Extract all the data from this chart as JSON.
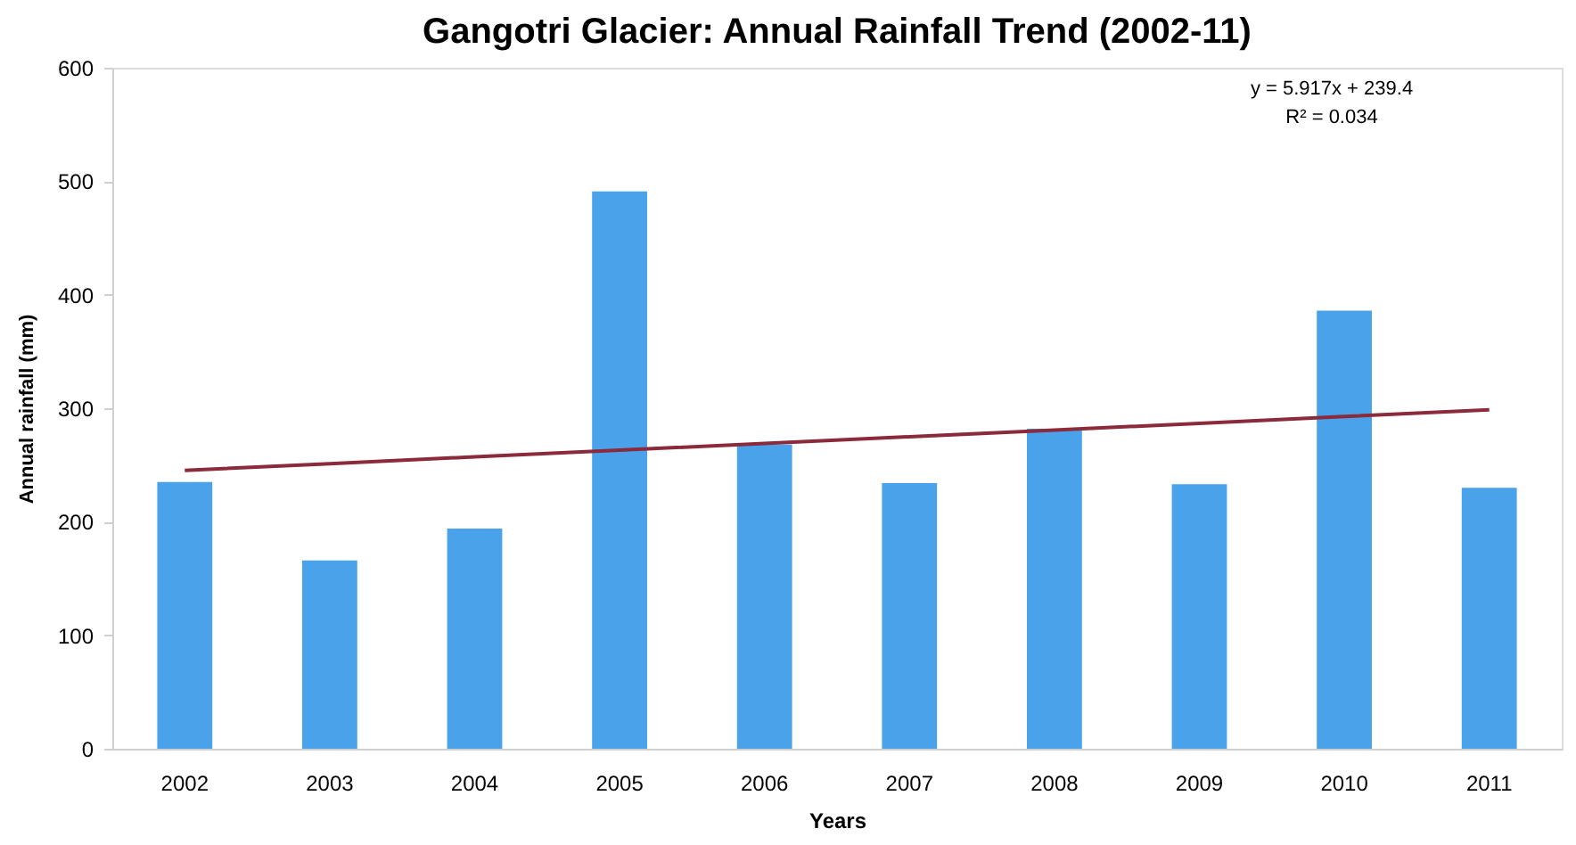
{
  "chart_data": {
    "type": "bar",
    "title": "Gangotri Glacier: Annual Rainfall Trend (2002-11)",
    "xlabel": "Years",
    "ylabel": "Annual rainfall (mm)",
    "categories": [
      "2002",
      "2003",
      "2004",
      "2005",
      "2006",
      "2007",
      "2008",
      "2009",
      "2010",
      "2011"
    ],
    "series": [
      {
        "color": "#4aa3ea",
        "values": [
          235,
          166,
          194,
          491,
          268,
          234,
          282,
          233,
          386,
          230
        ]
      },
      {
        "type": "line",
        "color": "#8b2a3a",
        "values": [
          245.3,
          251.2,
          257.2,
          263.1,
          269.0,
          274.9,
          280.8,
          286.7,
          292.7,
          298.6
        ]
      }
    ],
    "ylim": [
      0,
      600
    ],
    "yticks": [
      0,
      100,
      200,
      300,
      400,
      500,
      600
    ],
    "grid": false,
    "annotations": [
      "y = 5.917x + 239.4",
      "R² = 0.034"
    ]
  }
}
